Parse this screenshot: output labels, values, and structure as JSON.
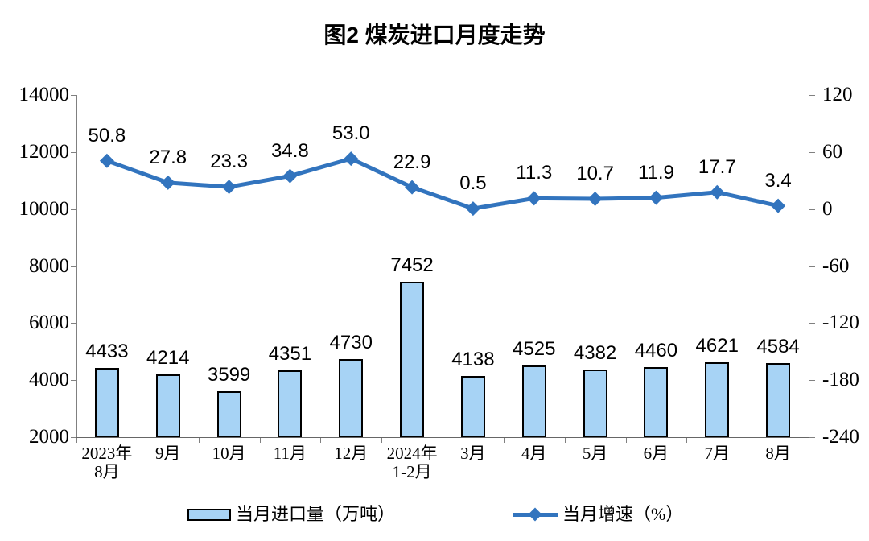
{
  "title": "图2 煤炭进口月度走势",
  "legend": {
    "bar_label": "当月进口量（万吨）",
    "line_label": "当月增速（%）"
  },
  "colors": {
    "bar_fill": "#A7D3F5",
    "bar_border": "#000000",
    "line": "#3274BE",
    "axis": "#808080",
    "text": "#000000"
  },
  "chart_data": {
    "type": "combo-bar-line",
    "categories": [
      "2023年\n8月",
      "9月",
      "10月",
      "11月",
      "12月",
      "2024年\n1-2月",
      "3月",
      "4月",
      "5月",
      "6月",
      "7月",
      "8月"
    ],
    "series": [
      {
        "name": "当月进口量（万吨）",
        "type": "bar",
        "axis": "left",
        "values": [
          4433,
          4214,
          3599,
          4351,
          4730,
          7452,
          4138,
          4525,
          4382,
          4460,
          4621,
          4584
        ]
      },
      {
        "name": "当月增速（%）",
        "type": "line",
        "axis": "right",
        "marker": "diamond",
        "values": [
          50.8,
          27.8,
          23.3,
          34.8,
          53.0,
          22.9,
          0.5,
          11.3,
          10.7,
          11.9,
          17.7,
          3.4
        ]
      }
    ],
    "left_axis": {
      "min": 2000,
      "max": 14000,
      "ticks": [
        14000,
        12000,
        10000,
        8000,
        6000,
        4000,
        2000
      ]
    },
    "right_axis": {
      "min": -240,
      "max": 120,
      "ticks": [
        120,
        60,
        0,
        -60,
        -120,
        -180,
        -240
      ]
    },
    "grid": false,
    "data_labels": true,
    "legend_position": "bottom"
  }
}
